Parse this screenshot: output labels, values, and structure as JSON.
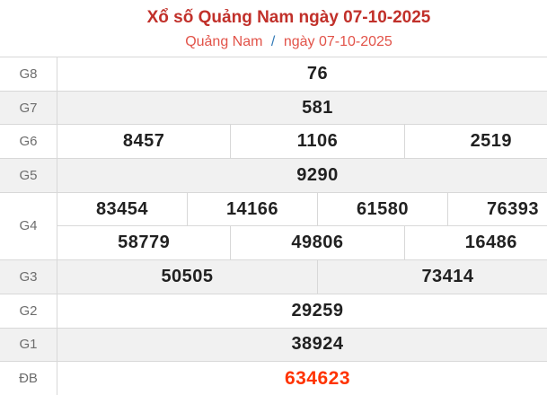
{
  "header": {
    "title": "Xổ số Quảng Nam ngày 07-10-2025",
    "breadcrumb": {
      "region": "Quảng Nam",
      "separator": "/",
      "date": "ngày 07-10-2025"
    }
  },
  "colors": {
    "title_red": "#c1302a",
    "breadcrumb_red": "#e25349",
    "separator_blue": "#337ab7",
    "special_prize_red": "#ff3300",
    "number_dark": "#212121",
    "label_gray": "#6d6d6d",
    "row_alt_bg": "#f1f1f1",
    "border": "#d8d8d8"
  },
  "results": {
    "rows": [
      {
        "label": "G8",
        "groups": [
          [
            "76"
          ]
        ]
      },
      {
        "label": "G7",
        "groups": [
          [
            "581"
          ]
        ]
      },
      {
        "label": "G6",
        "groups": [
          [
            "8457",
            "1106",
            "2519"
          ]
        ]
      },
      {
        "label": "G5",
        "groups": [
          [
            "9290"
          ]
        ]
      },
      {
        "label": "G4",
        "groups": [
          [
            "83454",
            "14166",
            "61580",
            "76393"
          ],
          [
            "58779",
            "49806",
            "16486"
          ]
        ]
      },
      {
        "label": "G3",
        "groups": [
          [
            "50505",
            "73414"
          ]
        ]
      },
      {
        "label": "G2",
        "groups": [
          [
            "29259"
          ]
        ]
      },
      {
        "label": "G1",
        "groups": [
          [
            "38924"
          ]
        ]
      },
      {
        "label": "ĐB",
        "groups": [
          [
            "634623"
          ]
        ],
        "special": true
      }
    ]
  }
}
